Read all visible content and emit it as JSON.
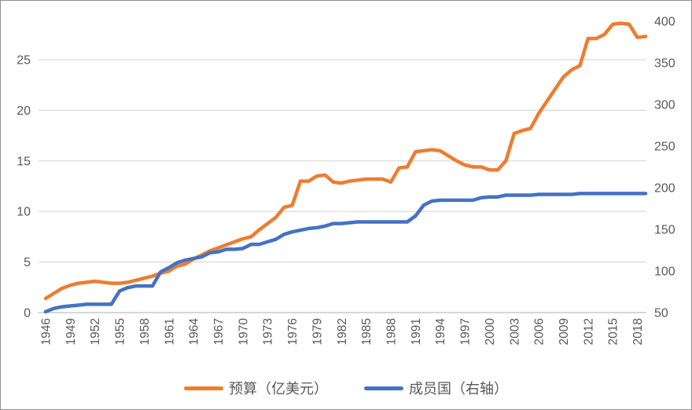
{
  "chart_data": {
    "type": "line",
    "x_range": [
      1946,
      2019
    ],
    "x": [
      1946,
      1947,
      1948,
      1949,
      1950,
      1951,
      1952,
      1953,
      1954,
      1955,
      1956,
      1957,
      1958,
      1959,
      1960,
      1961,
      1962,
      1963,
      1964,
      1965,
      1966,
      1967,
      1968,
      1969,
      1970,
      1971,
      1972,
      1973,
      1974,
      1975,
      1976,
      1977,
      1978,
      1979,
      1980,
      1981,
      1982,
      1983,
      1984,
      1985,
      1986,
      1987,
      1988,
      1989,
      1990,
      1991,
      1992,
      1993,
      1994,
      1995,
      1996,
      1997,
      1998,
      1999,
      2000,
      2001,
      2002,
      2003,
      2004,
      2005,
      2006,
      2007,
      2008,
      2009,
      2010,
      2011,
      2012,
      2013,
      2014,
      2015,
      2016,
      2017,
      2018,
      2019
    ],
    "series": [
      {
        "name": "预算（亿美元）",
        "axis": "left",
        "color": "#ED7D31",
        "values": [
          1.4,
          1.9,
          2.4,
          2.7,
          2.9,
          3.0,
          3.1,
          3.0,
          2.9,
          2.9,
          3.0,
          3.2,
          3.4,
          3.6,
          3.9,
          4.1,
          4.6,
          4.8,
          5.3,
          5.7,
          6.1,
          6.4,
          6.7,
          7.0,
          7.3,
          7.5,
          8.2,
          8.8,
          9.4,
          10.4,
          10.6,
          13.0,
          13.0,
          13.5,
          13.6,
          12.9,
          12.8,
          13.0,
          13.1,
          13.2,
          13.2,
          13.2,
          12.9,
          14.3,
          14.4,
          15.9,
          16.0,
          16.1,
          16.0,
          15.5,
          15.0,
          14.6,
          14.4,
          14.4,
          14.1,
          14.1,
          15.0,
          17.7,
          18.0,
          18.2,
          19.7,
          20.9,
          22.1,
          23.3,
          24.0,
          24.4,
          27.1,
          27.1,
          27.5,
          28.5,
          28.6,
          28.5,
          27.2,
          27.3
        ]
      },
      {
        "name": "成员国（右轴）",
        "axis": "right",
        "color": "#4472C4",
        "values": [
          51,
          55,
          57,
          58,
          59,
          60,
          60,
          60,
          60,
          76,
          80,
          82,
          82,
          82,
          99,
          104,
          110,
          113,
          115,
          117,
          122,
          123,
          126,
          126,
          127,
          132,
          132,
          135,
          138,
          144,
          147,
          149,
          151,
          152,
          154,
          157,
          157,
          158,
          159,
          159,
          159,
          159,
          159,
          159,
          159,
          166,
          179,
          184,
          185,
          185,
          185,
          185,
          185,
          188,
          189,
          189,
          191,
          191,
          191,
          191,
          192,
          192,
          192,
          192,
          192,
          193,
          193,
          193,
          193,
          193,
          193,
          193,
          193,
          193
        ]
      }
    ],
    "left_axis": {
      "min": 0,
      "max": 28.8,
      "ticks": [
        0,
        5,
        10,
        15,
        20,
        25
      ]
    },
    "right_axis": {
      "min": 50,
      "max": 400,
      "ticks": [
        50,
        100,
        150,
        200,
        250,
        300,
        350,
        400
      ]
    },
    "x_ticks": [
      1946,
      1949,
      1952,
      1955,
      1958,
      1961,
      1964,
      1967,
      1970,
      1973,
      1976,
      1979,
      1982,
      1985,
      1988,
      1991,
      1994,
      1997,
      2000,
      2003,
      2006,
      2009,
      2012,
      2015,
      2018
    ],
    "grid": true,
    "legend_position": "bottom",
    "title": ""
  },
  "legend": {
    "items": [
      {
        "label": "预算（亿美元）"
      },
      {
        "label": "成员国（右轴）"
      }
    ]
  },
  "colors": {
    "budget_line": "#ED7D31",
    "members_line": "#4472C4",
    "gridline": "#D9D9D9",
    "axis_line": "#BFBFBF",
    "tick_text": "#595959"
  }
}
